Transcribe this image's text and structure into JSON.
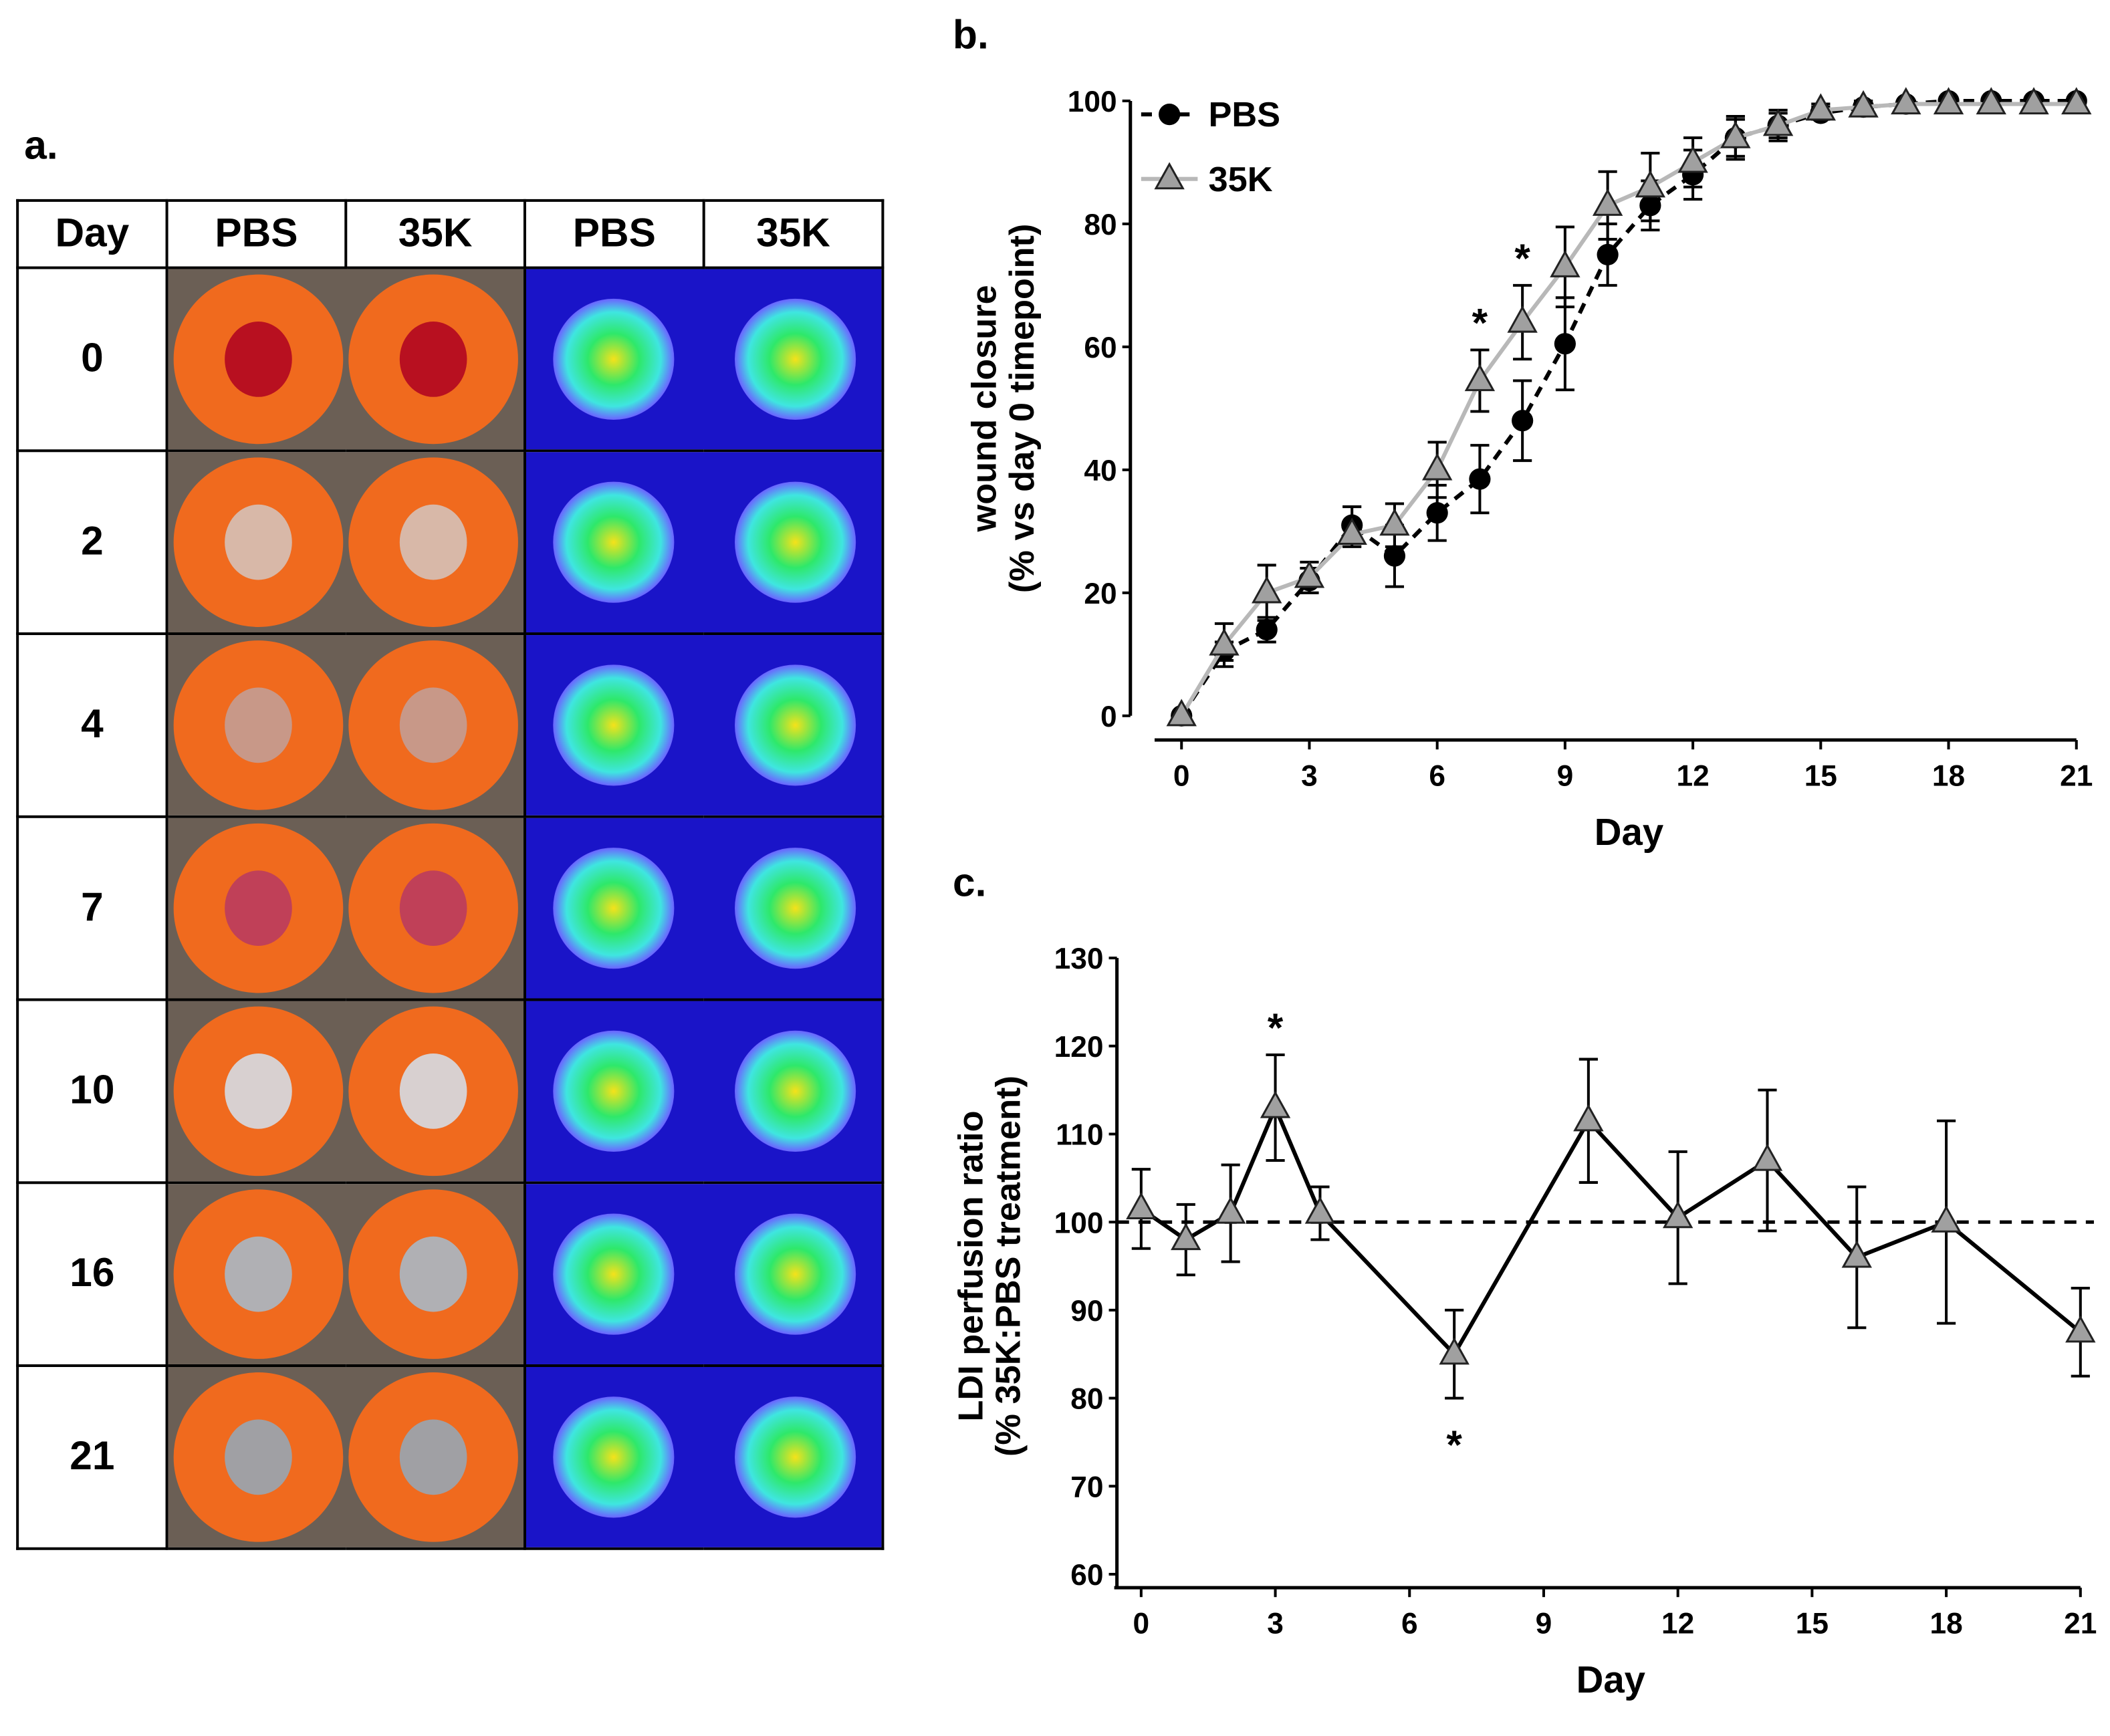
{
  "panel_labels": {
    "a": "a.",
    "b": "b.",
    "c": "c."
  },
  "table": {
    "headers": [
      "Day",
      "PBS",
      "35K",
      "PBS",
      "35K"
    ],
    "days": [
      "0",
      "2",
      "4",
      "7",
      "10",
      "16",
      "21"
    ]
  },
  "colors": {
    "ring": "#f06a1e",
    "ldi_bg": "#1a14c8",
    "pbs": "#000000",
    "k35_marker": "#a0a0a0",
    "k35_line": "#b8b8b8"
  },
  "chart_data": [
    {
      "type": "line",
      "title": "",
      "xlabel": "Day",
      "ylabel": "wound closure",
      "ylabel2": "(% vs day 0 timepoint)",
      "xlim": [
        0,
        21
      ],
      "ylim": [
        0,
        100
      ],
      "xticks": [
        "0",
        "3",
        "6",
        "9",
        "12",
        "15",
        "18",
        "21"
      ],
      "yticks": [
        "0",
        "20",
        "40",
        "60",
        "80",
        "100"
      ],
      "legend_position": "top-left",
      "x": [
        0,
        1,
        2,
        3,
        4,
        5,
        6,
        7,
        8,
        9,
        10,
        11,
        12,
        13,
        14,
        15,
        16,
        17,
        18,
        19,
        20,
        21
      ],
      "series": [
        {
          "name": "PBS",
          "values": [
            0,
            10.5,
            14,
            22,
            31,
            26,
            33,
            38.5,
            48,
            60.5,
            75,
            83,
            88,
            94,
            96,
            98,
            99,
            99.5,
            100,
            100,
            100,
            100
          ],
          "error": [
            0,
            1.5,
            2,
            2,
            3,
            5,
            4.5,
            5.5,
            6.5,
            7.5,
            5,
            4,
            4,
            3,
            2,
            1,
            1,
            0.5,
            0.5,
            0.5,
            0.5,
            0.5
          ]
        },
        {
          "name": "35K",
          "values": [
            0,
            11.5,
            20,
            22.5,
            29.5,
            31,
            40,
            54.5,
            64,
            73,
            83,
            86,
            90,
            94,
            96,
            98.5,
            99,
            99.5,
            99.5,
            99.5,
            99.5,
            99.5
          ],
          "error": [
            0,
            3.5,
            4.5,
            2.5,
            2,
            3.5,
            4.5,
            5,
            6,
            6.5,
            5.5,
            5.5,
            4,
            3.5,
            2.5,
            1,
            1,
            0.5,
            0.5,
            0.5,
            0.5,
            0.5
          ]
        }
      ],
      "annotations": [
        {
          "text": "*",
          "x": 7
        },
        {
          "text": "*",
          "x": 8
        }
      ]
    },
    {
      "type": "line",
      "title": "",
      "xlabel": "Day",
      "ylabel": "LDI perfusion ratio",
      "ylabel2": "(% 35K:PBS treatment)",
      "xlim": [
        0,
        21
      ],
      "ylim": [
        60,
        130
      ],
      "xticks": [
        "0",
        "3",
        "6",
        "9",
        "12",
        "15",
        "18",
        "21"
      ],
      "yticks": [
        "60",
        "70",
        "80",
        "90",
        "100",
        "110",
        "120",
        "130"
      ],
      "reference_line": 100,
      "x": [
        0,
        1,
        2,
        3,
        4,
        7,
        10,
        12,
        14,
        16,
        18,
        21
      ],
      "series": [
        {
          "name": "35K:PBS",
          "values": [
            101.5,
            98,
            101,
            113,
            101,
            85,
            111.5,
            100.5,
            107,
            96,
            100,
            87.5
          ],
          "error": [
            4.5,
            4,
            5.5,
            6,
            3,
            5,
            7,
            7.5,
            8,
            8,
            11.5,
            5
          ]
        }
      ],
      "annotations": [
        {
          "text": "*",
          "x": 3,
          "position": "above"
        },
        {
          "text": "*",
          "x": 7,
          "position": "below"
        }
      ]
    }
  ]
}
